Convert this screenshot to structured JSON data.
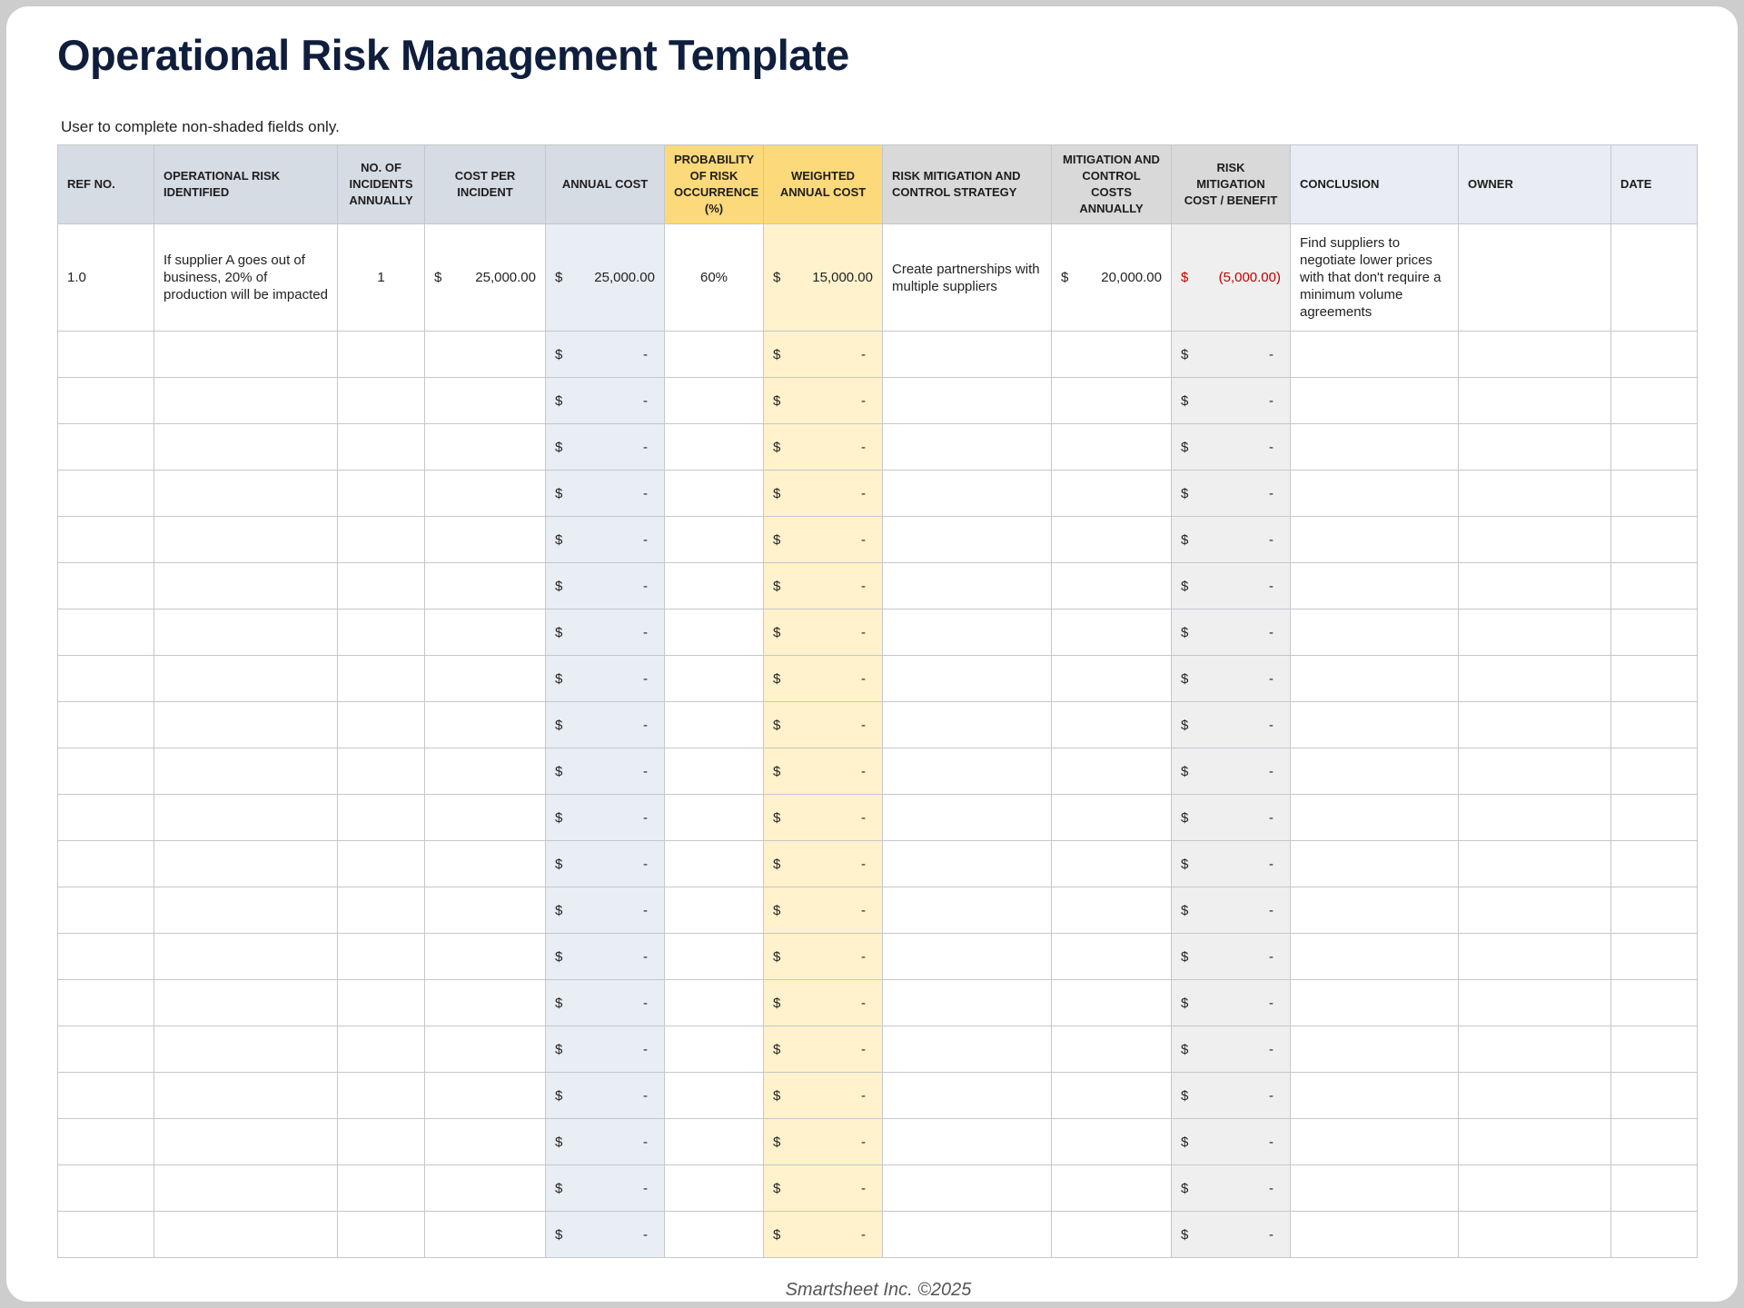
{
  "header": {
    "title": "Operational Risk Management Template",
    "instruction": "User to complete non-shaded fields only."
  },
  "table": {
    "headers": [
      "REF NO.",
      "OPERATIONAL RISK IDENTIFIED",
      "NO. OF INCIDENTS ANNUALLY",
      "COST PER INCIDENT",
      "ANNUAL COST",
      "PROBABILITY OF RISK OCCURRENCE (%)",
      "WEIGHTED ANNUAL COST",
      "RISK MITIGATION AND CONTROL STRATEGY",
      "MITIGATION AND CONTROL COSTS ANNUALLY",
      "RISK MITIGATION COST / BENEFIT",
      "CONCLUSION",
      "OWNER",
      "DATE"
    ],
    "rows": [
      [
        "1.0",
        "If supplier A goes out of business, 20% of production will be impacted",
        "1",
        {
          "currency": "$",
          "amount": "25,000.00"
        },
        {
          "currency": "$",
          "amount": "25,000.00"
        },
        "60%",
        {
          "currency": "$",
          "amount": "15,000.00"
        },
        "Create partnerships with multiple suppliers",
        {
          "currency": "$",
          "amount": "20,000.00"
        },
        {
          "currency": "$",
          "amount": "(5,000.00)"
        },
        "Find suppliers to negotiate lower prices with that don't require a minimum volume agreements",
        null,
        null
      ],
      [
        null,
        null,
        null,
        null,
        {
          "currency": "$",
          "amount": "-"
        },
        null,
        {
          "currency": "$",
          "amount": "-"
        },
        null,
        null,
        {
          "currency": "$",
          "amount": "-"
        },
        null,
        null,
        null
      ],
      [
        null,
        null,
        null,
        null,
        {
          "currency": "$",
          "amount": "-"
        },
        null,
        {
          "currency": "$",
          "amount": "-"
        },
        null,
        null,
        {
          "currency": "$",
          "amount": "-"
        },
        null,
        null,
        null
      ],
      [
        null,
        null,
        null,
        null,
        {
          "currency": "$",
          "amount": "-"
        },
        null,
        {
          "currency": "$",
          "amount": "-"
        },
        null,
        null,
        {
          "currency": "$",
          "amount": "-"
        },
        null,
        null,
        null
      ],
      [
        null,
        null,
        null,
        null,
        {
          "currency": "$",
          "amount": "-"
        },
        null,
        {
          "currency": "$",
          "amount": "-"
        },
        null,
        null,
        {
          "currency": "$",
          "amount": "-"
        },
        null,
        null,
        null
      ],
      [
        null,
        null,
        null,
        null,
        {
          "currency": "$",
          "amount": "-"
        },
        null,
        {
          "currency": "$",
          "amount": "-"
        },
        null,
        null,
        {
          "currency": "$",
          "amount": "-"
        },
        null,
        null,
        null
      ],
      [
        null,
        null,
        null,
        null,
        {
          "currency": "$",
          "amount": "-"
        },
        null,
        {
          "currency": "$",
          "amount": "-"
        },
        null,
        null,
        {
          "currency": "$",
          "amount": "-"
        },
        null,
        null,
        null
      ],
      [
        null,
        null,
        null,
        null,
        {
          "currency": "$",
          "amount": "-"
        },
        null,
        {
          "currency": "$",
          "amount": "-"
        },
        null,
        null,
        {
          "currency": "$",
          "amount": "-"
        },
        null,
        null,
        null
      ],
      [
        null,
        null,
        null,
        null,
        {
          "currency": "$",
          "amount": "-"
        },
        null,
        {
          "currency": "$",
          "amount": "-"
        },
        null,
        null,
        {
          "currency": "$",
          "amount": "-"
        },
        null,
        null,
        null
      ],
      [
        null,
        null,
        null,
        null,
        {
          "currency": "$",
          "amount": "-"
        },
        null,
        {
          "currency": "$",
          "amount": "-"
        },
        null,
        null,
        {
          "currency": "$",
          "amount": "-"
        },
        null,
        null,
        null
      ],
      [
        null,
        null,
        null,
        null,
        {
          "currency": "$",
          "amount": "-"
        },
        null,
        {
          "currency": "$",
          "amount": "-"
        },
        null,
        null,
        {
          "currency": "$",
          "amount": "-"
        },
        null,
        null,
        null
      ],
      [
        null,
        null,
        null,
        null,
        {
          "currency": "$",
          "amount": "-"
        },
        null,
        {
          "currency": "$",
          "amount": "-"
        },
        null,
        null,
        {
          "currency": "$",
          "amount": "-"
        },
        null,
        null,
        null
      ],
      [
        null,
        null,
        null,
        null,
        {
          "currency": "$",
          "amount": "-"
        },
        null,
        {
          "currency": "$",
          "amount": "-"
        },
        null,
        null,
        {
          "currency": "$",
          "amount": "-"
        },
        null,
        null,
        null
      ],
      [
        null,
        null,
        null,
        null,
        {
          "currency": "$",
          "amount": "-"
        },
        null,
        {
          "currency": "$",
          "amount": "-"
        },
        null,
        null,
        {
          "currency": "$",
          "amount": "-"
        },
        null,
        null,
        null
      ],
      [
        null,
        null,
        null,
        null,
        {
          "currency": "$",
          "amount": "-"
        },
        null,
        {
          "currency": "$",
          "amount": "-"
        },
        null,
        null,
        {
          "currency": "$",
          "amount": "-"
        },
        null,
        null,
        null
      ],
      [
        null,
        null,
        null,
        null,
        {
          "currency": "$",
          "amount": "-"
        },
        null,
        {
          "currency": "$",
          "amount": "-"
        },
        null,
        null,
        {
          "currency": "$",
          "amount": "-"
        },
        null,
        null,
        null
      ],
      [
        null,
        null,
        null,
        null,
        {
          "currency": "$",
          "amount": "-"
        },
        null,
        {
          "currency": "$",
          "amount": "-"
        },
        null,
        null,
        {
          "currency": "$",
          "amount": "-"
        },
        null,
        null,
        null
      ],
      [
        null,
        null,
        null,
        null,
        {
          "currency": "$",
          "amount": "-"
        },
        null,
        {
          "currency": "$",
          "amount": "-"
        },
        null,
        null,
        {
          "currency": "$",
          "amount": "-"
        },
        null,
        null,
        null
      ],
      [
        null,
        null,
        null,
        null,
        {
          "currency": "$",
          "amount": "-"
        },
        null,
        {
          "currency": "$",
          "amount": "-"
        },
        null,
        null,
        {
          "currency": "$",
          "amount": "-"
        },
        null,
        null,
        null
      ],
      [
        null,
        null,
        null,
        null,
        {
          "currency": "$",
          "amount": "-"
        },
        null,
        {
          "currency": "$",
          "amount": "-"
        },
        null,
        null,
        {
          "currency": "$",
          "amount": "-"
        },
        null,
        null,
        null
      ],
      [
        null,
        null,
        null,
        null,
        {
          "currency": "$",
          "amount": "-"
        },
        null,
        {
          "currency": "$",
          "amount": "-"
        },
        null,
        null,
        {
          "currency": "$",
          "amount": "-"
        },
        null,
        null,
        null
      ]
    ]
  },
  "footer": {
    "text": "Smartsheet Inc. ©2025"
  }
}
